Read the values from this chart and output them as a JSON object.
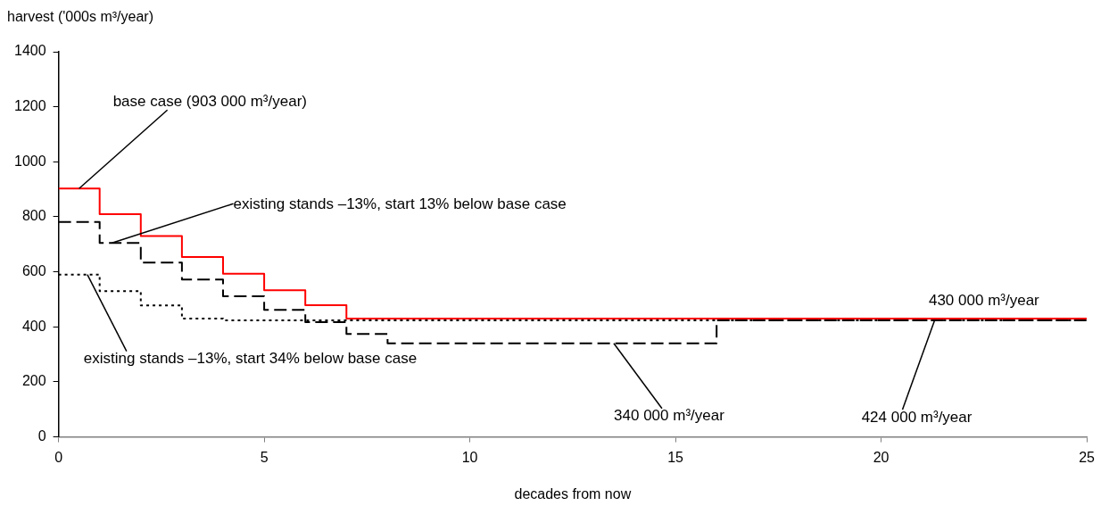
{
  "chart_data": {
    "type": "step",
    "ylabel": "harvest ('000s m³/year)",
    "xlabel": "decades from now",
    "x": [
      0,
      1,
      2,
      3,
      4,
      5,
      6,
      7,
      8,
      9,
      10,
      11,
      12,
      13,
      14,
      15,
      16,
      17,
      18,
      19,
      20,
      21,
      22,
      23,
      24,
      25
    ],
    "xlim": [
      0,
      25
    ],
    "xticks": [
      0,
      5,
      10,
      15,
      20,
      25
    ],
    "ylim": [
      0,
      1400
    ],
    "yticks": [
      0,
      200,
      400,
      600,
      800,
      1000,
      1200,
      1400
    ],
    "series": [
      {
        "color": "#ff0000",
        "line_style": "solid",
        "values": [
          903,
          810,
          730,
          654,
          593,
          533,
          479,
          430,
          430,
          430,
          430,
          430,
          430,
          430,
          430,
          430,
          430,
          430,
          430,
          430,
          430,
          430,
          430,
          430,
          430,
          430
        ]
      },
      {
        "color": "#000000",
        "line_style": "dashed",
        "values": [
          781,
          705,
          634,
          572,
          511,
          462,
          417,
          374,
          340,
          340,
          340,
          340,
          340,
          340,
          340,
          340,
          424,
          424,
          424,
          424,
          424,
          424,
          424,
          424,
          424,
          424
        ]
      },
      {
        "color": "#000000",
        "line_style": "dotted",
        "values": [
          590,
          530,
          478,
          430,
          424,
          424,
          424,
          424,
          424,
          424,
          424,
          424,
          424,
          424,
          424,
          424,
          424,
          424,
          424,
          424,
          424,
          424,
          424,
          424,
          424,
          424
        ]
      }
    ],
    "annotations": [
      {
        "text": "base case (903 000 m³/year)",
        "x": 0.5,
        "y": 903
      },
      {
        "text": "existing stands –13%, start 13% below base case",
        "x": 1.3,
        "y": 705
      },
      {
        "text": "existing stands –13%, start 34% below base case",
        "x": 0.7,
        "y": 590
      },
      {
        "text": "340 000 m³/year",
        "x": 13.5,
        "y": 340
      },
      {
        "text": "430 000 m³/year",
        "x": 22.5,
        "y": 430
      },
      {
        "text": "424 000 m³/year",
        "x": 21.3,
        "y": 424
      }
    ]
  }
}
